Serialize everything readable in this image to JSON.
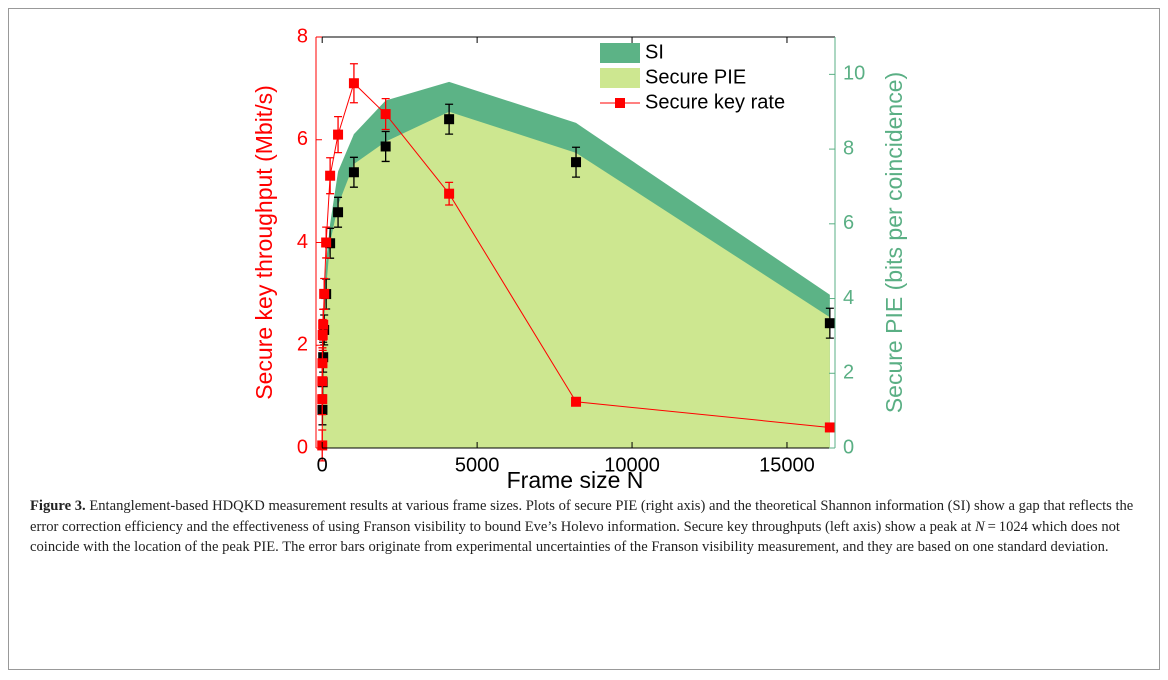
{
  "chart_data": {
    "type": "line",
    "xlabel": "Frame size N",
    "ylabel": "Secure key throughput (Mbit/s)",
    "y2label": "Secure PIE (bits per coincidence)",
    "xlim": [
      -200,
      16550
    ],
    "xticks": [
      0,
      5000,
      10000,
      15000
    ],
    "ylim": [
      0,
      8
    ],
    "yticks": [
      0,
      2,
      4,
      6,
      8
    ],
    "y2lim": [
      0,
      11
    ],
    "y2ticks": [
      0,
      2,
      4,
      6,
      8,
      10
    ],
    "legend": "upper right",
    "x": [
      1,
      2,
      4,
      8,
      16,
      32,
      64,
      128,
      256,
      512,
      1024,
      2048,
      4096,
      8192,
      16384
    ],
    "series": [
      {
        "name": "SI",
        "type": "area",
        "axis": "y2",
        "color": "#5cb386",
        "values": [
          0.5,
          1.2,
          1.8,
          2.4,
          3.0,
          3.6,
          4.2,
          5.0,
          6.0,
          7.4,
          8.4,
          9.3,
          9.8,
          8.7,
          4.1
        ]
      },
      {
        "name": "Secure PIE",
        "type": "area",
        "axis": "y2",
        "color": "#cde790",
        "values": [
          0.3,
          0.9,
          1.4,
          1.9,
          2.4,
          2.9,
          3.4,
          4.3,
          5.5,
          6.5,
          7.6,
          8.2,
          9.0,
          7.9,
          3.5
        ]
      },
      {
        "type": "scatter",
        "axis": "y2",
        "color": "#000000",
        "x": [
          8,
          16,
          32,
          64,
          128,
          256,
          512,
          1024,
          2048,
          4096,
          8192,
          16384
        ],
        "values": [
          1.02,
          1.76,
          2.43,
          3.16,
          4.12,
          5.48,
          6.31,
          7.38,
          8.07,
          8.8,
          7.65,
          3.34
        ],
        "errors": [
          0.4,
          0.4,
          0.4,
          0.4,
          0.4,
          0.4,
          0.4,
          0.4,
          0.4,
          0.4,
          0.4,
          0.4
        ]
      },
      {
        "name": "Secure key rate",
        "type": "line",
        "axis": "y",
        "color": "#ff0000",
        "values": [
          0.05,
          0.95,
          1.3,
          1.65,
          2.2,
          2.4,
          3.0,
          4.0,
          5.3,
          6.1,
          7.1,
          6.5,
          4.95,
          0.9,
          0.4
        ],
        "errors": [
          0.3,
          0.3,
          0.3,
          0.3,
          0.3,
          0.3,
          0.3,
          0.3,
          0.35,
          0.35,
          0.38,
          0.3,
          0.22,
          0.05,
          0.05
        ]
      }
    ]
  },
  "caption": {
    "label": "Figure 3.",
    "segments": [
      {
        "text": " Entanglement-based HDQKD measurement results at various frame sizes. Plots of secure PIE (right axis) and the theoretical Shannon information (SI) show a gap that reflects the error correction efficiency and the effectiveness of using Franson visibility to bound Eve’s Holevo information. Secure key throughputs (left axis) show a peak at "
      },
      {
        "text": "N",
        "italic": true
      },
      {
        "text": " = 1024 which does not coincide with the location of the peak PIE. The error bars originate from experimental uncertainties of the Franson visibility measurement, and they are based on one standard deviation."
      }
    ]
  }
}
